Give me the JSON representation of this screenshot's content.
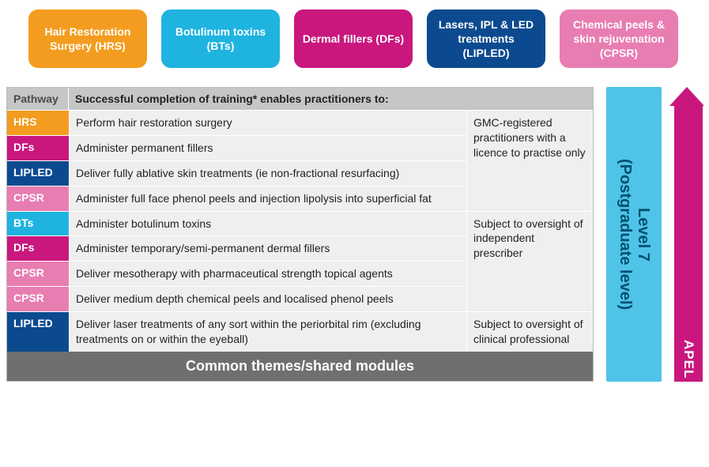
{
  "colors": {
    "orange": "#f39c1f",
    "skyblue": "#1fb3e0",
    "magenta": "#c9177e",
    "navy": "#0c4a8f",
    "pink": "#e87db2",
    "lightblue_panel": "#4fc3e8",
    "arrow": "#c9177e",
    "grey_header": "#c6c6c6",
    "grey_cell": "#efefef",
    "footer_grey": "#6f6f70"
  },
  "topBoxes": [
    {
      "label": "Hair Restoration Surgery (HRS)",
      "colorKey": "orange"
    },
    {
      "label": "Botulinum toxins (BTs)",
      "colorKey": "skyblue"
    },
    {
      "label": "Dermal fillers (DFs)",
      "colorKey": "magenta"
    },
    {
      "label": "Lasers, IPL & LED treatments (LIPLED)",
      "colorKey": "navy"
    },
    {
      "label": "Chemical peels & skin rejuvenation (CPSR)",
      "colorKey": "pink"
    }
  ],
  "table": {
    "header_pathway": "Pathway",
    "header_desc": "Successful completion of training* enables practitioners to:",
    "groups": [
      {
        "note": "GMC-registered practitioners with a licence to practise only",
        "rows": [
          {
            "code": "HRS",
            "colorKey": "orange",
            "desc": "Perform hair restoration surgery"
          },
          {
            "code": "DFs",
            "colorKey": "magenta",
            "desc": "Administer permanent fillers"
          },
          {
            "code": "LIPLED",
            "colorKey": "navy",
            "desc": "Deliver fully ablative skin treatments (ie non-fractional resurfacing)"
          },
          {
            "code": "CPSR",
            "colorKey": "pink",
            "desc": "Administer full face phenol peels and injection lipolysis into superficial fat"
          }
        ]
      },
      {
        "note": "Subject to oversight of independent prescriber",
        "rows": [
          {
            "code": "BTs",
            "colorKey": "skyblue",
            "desc": "Administer botulinum toxins"
          },
          {
            "code": "DFs",
            "colorKey": "magenta",
            "desc": "Administer temporary/semi-permanent dermal fillers"
          },
          {
            "code": "CPSR",
            "colorKey": "pink",
            "desc": "Deliver mesotherapy with pharmaceutical strength topical agents"
          },
          {
            "code": "CPSR",
            "colorKey": "pink",
            "desc": "Deliver medium depth chemical peels and localised phenol peels"
          }
        ]
      },
      {
        "note": "Subject to oversight of clinical professional",
        "rows": [
          {
            "code": "LIPLED",
            "colorKey": "navy",
            "desc": "Deliver laser treatments of any sort within the periorbital rim (excluding treatments on or within the eyeball)"
          }
        ]
      }
    ],
    "footer": "Common themes/shared modules"
  },
  "level_label": "Level 7\n(Postgraduate level)",
  "arrow_label": "APEL"
}
